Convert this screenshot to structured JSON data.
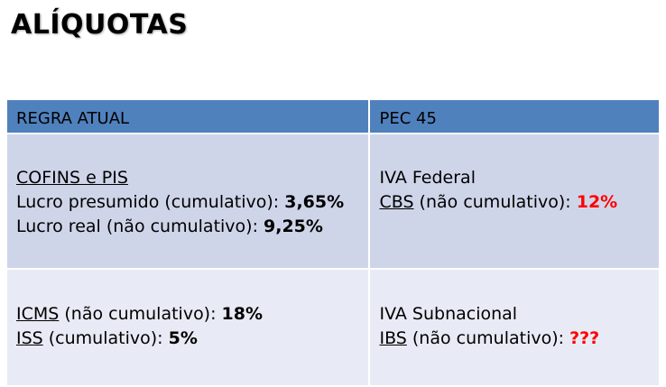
{
  "title": "ALÍQUOTAS",
  "colors": {
    "header": "#4f81bd",
    "row1": "#cfd5e9",
    "row2": "#e8ebf5",
    "highlight": "#ff0000"
  },
  "table": {
    "headers": [
      "REGRA ATUAL",
      "PEC 45"
    ],
    "rows": [
      {
        "left": {
          "heading": "COFINS e PIS",
          "line1_label": "Lucro presumido (cumulativo): ",
          "line1_value": "3,65%",
          "line2_label": "Lucro real (não cumulativo): ",
          "line2_value": "9,25%"
        },
        "right": {
          "heading": "IVA Federal",
          "tax": "CBS",
          "tax_label": " (não cumulativo): ",
          "tax_value": "12%"
        }
      },
      {
        "left": {
          "tax1": "ICMS",
          "tax1_label": " (não cumulativo): ",
          "tax1_value": "18%",
          "tax2": "ISS",
          "tax2_label": " (cumulativo): ",
          "tax2_value": "5%"
        },
        "right": {
          "heading": "IVA Subnacional",
          "tax": "IBS",
          "tax_label": " (não cumulativo): ",
          "tax_value": "???"
        }
      }
    ]
  }
}
